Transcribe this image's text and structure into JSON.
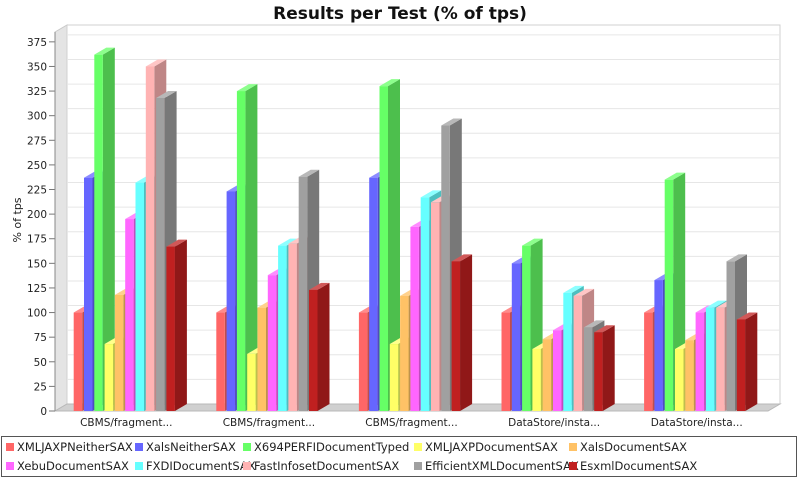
{
  "chart_data": {
    "type": "bar",
    "title": "Results per Test (% of tps)",
    "ylabel": "% of tps",
    "xlabel": "",
    "ylim": [
      0,
      385
    ],
    "yticks": [
      0,
      25,
      50,
      75,
      100,
      125,
      150,
      175,
      200,
      225,
      250,
      275,
      300,
      325,
      350,
      375
    ],
    "grid": true,
    "legend_position": "bottom",
    "categories": [
      "CBMS/fragment...",
      "CBMS/fragment...",
      "CBMS/fragment...",
      "DataStore/insta...",
      "DataStore/insta..."
    ],
    "series": [
      {
        "name": "XMLJAXPNeitherSAX",
        "color": "#ff6666",
        "values": [
          100,
          100,
          100,
          100,
          100
        ]
      },
      {
        "name": "XalsNeitherSAX",
        "color": "#6666ff",
        "values": [
          237,
          223,
          237,
          150,
          133
        ]
      },
      {
        "name": "X694PERFIDocumentTyped",
        "color": "#66ff66",
        "values": [
          362,
          325,
          330,
          168,
          235
        ]
      },
      {
        "name": "XMLJAXPDocumentSAX",
        "color": "#ffff66",
        "values": [
          68,
          58,
          68,
          63,
          63
        ]
      },
      {
        "name": "XalsDocumentSAX",
        "color": "#ffc266",
        "values": [
          118,
          105,
          117,
          73,
          72
        ]
      },
      {
        "name": "XebuDocumentSAX",
        "color": "#ff66ff",
        "values": [
          195,
          138,
          187,
          82,
          100
        ]
      },
      {
        "name": "FXDIDocumentSAX",
        "color": "#66ffff",
        "values": [
          232,
          168,
          217,
          120,
          105
        ]
      },
      {
        "name": "FastInfosetDocumentSAX",
        "color": "#ffb3b3",
        "values": [
          350,
          170,
          212,
          117,
          105
        ]
      },
      {
        "name": "EfficientXMLDocumentSAX",
        "color": "#a0a0a0",
        "values": [
          318,
          238,
          290,
          85,
          152
        ]
      },
      {
        "name": "EsxmlDocumentSAX",
        "color": "#c02020",
        "values": [
          167,
          123,
          152,
          80,
          93
        ]
      }
    ]
  }
}
